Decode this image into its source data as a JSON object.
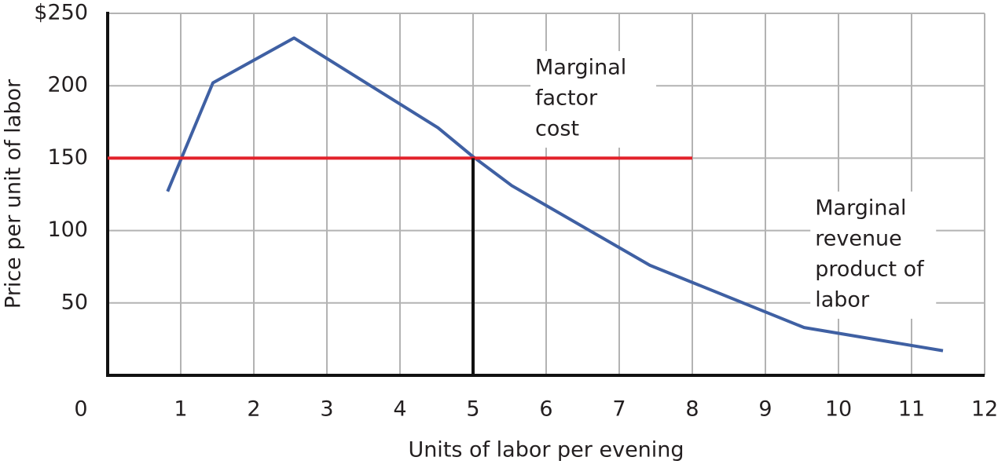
{
  "chart_data": {
    "type": "line",
    "xlabel": "Units of labor per evening",
    "ylabel": "Price per unit of labor",
    "xlim": [
      0,
      12
    ],
    "xticks": [
      0,
      1,
      2,
      3,
      4,
      5,
      6,
      7,
      8,
      9,
      10,
      11,
      12
    ],
    "ylim": [
      0,
      250
    ],
    "yticks": [
      50,
      100,
      150,
      200,
      {
        "value": 250,
        "label": "$250"
      }
    ],
    "grid": true,
    "series": [
      {
        "color": "#3f60a3",
        "x": [
          0.82,
          1.44,
          2.55,
          4.52,
          5,
          5.53,
          7.42,
          9.53,
          11.43
        ],
        "values": [
          127,
          202,
          233,
          171,
          151,
          131,
          76,
          33,
          17
        ]
      },
      {
        "color": "#e2222a",
        "x": [
          0,
          8
        ],
        "values": [
          150,
          150
        ]
      },
      {
        "color": "#111111",
        "x": [
          5,
          5
        ],
        "values": [
          0,
          150
        ]
      }
    ],
    "annotations": [
      {
        "x": 5.85,
        "y": 212,
        "lines": [
          "Marginal",
          "factor",
          "cost"
        ]
      },
      {
        "x": 9.68,
        "y": 115,
        "lines": [
          "Marginal",
          "revenue",
          "product of",
          "labor"
        ]
      }
    ]
  }
}
